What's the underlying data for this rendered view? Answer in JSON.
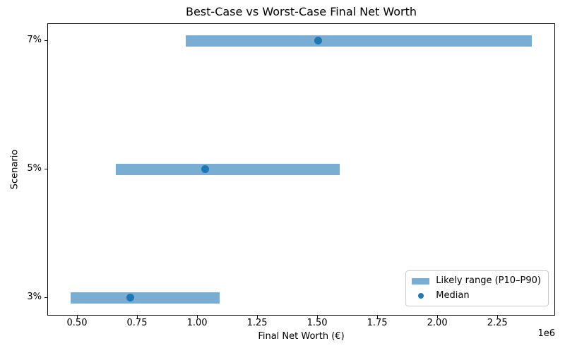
{
  "figure": {
    "title": "Best-Case vs Worst-Case Final Net Worth",
    "xlabel": "Final Net Worth (€)",
    "ylabel": "Scenario",
    "axis_offset_text": "1e6"
  },
  "chart_data": {
    "type": "bar",
    "orientation": "horizontal",
    "title": "Best-Case vs Worst-Case Final Net Worth",
    "xlabel": "Final Net Worth (€)",
    "ylabel": "Scenario",
    "grid": false,
    "categories": [
      "7%",
      "5%",
      "3%"
    ],
    "rows": [
      {
        "label": "7%",
        "p10": 950000,
        "median": 1500000,
        "p90": 2390000
      },
      {
        "label": "5%",
        "p10": 660000,
        "median": 1030000,
        "p90": 1590000
      },
      {
        "label": "3%",
        "p10": 470000,
        "median": 720000,
        "p90": 1090000
      }
    ],
    "series": [
      {
        "name": "Likely range (P10–P90)",
        "type": "range_bar",
        "low": [
          950000,
          660000,
          470000
        ],
        "high": [
          2390000,
          1590000,
          1090000
        ]
      },
      {
        "name": "Median",
        "type": "scatter",
        "values": [
          1500000,
          1030000,
          720000
        ]
      }
    ],
    "xlim": [
      376500,
      2490600
    ],
    "x_ticks": {
      "values": [
        500000,
        750000,
        1000000,
        1250000,
        1500000,
        1750000,
        2000000,
        2250000
      ],
      "labels": [
        "0.50",
        "0.75",
        "1.00",
        "1.25",
        "1.50",
        "1.75",
        "2.00",
        "2.25"
      ],
      "offset_text": "1e6"
    },
    "colors": {
      "range_bar": "#79add2",
      "median_dot": "#1f77b4",
      "spine": "#000000",
      "legend_border": "#cccccc"
    },
    "legend": {
      "position": "lower right",
      "entries": [
        {
          "label": "Likely range (P10–P90)",
          "marker": "bar",
          "color": "#79add2"
        },
        {
          "label": "Median",
          "marker": "dot",
          "color": "#1f77b4"
        }
      ]
    }
  }
}
